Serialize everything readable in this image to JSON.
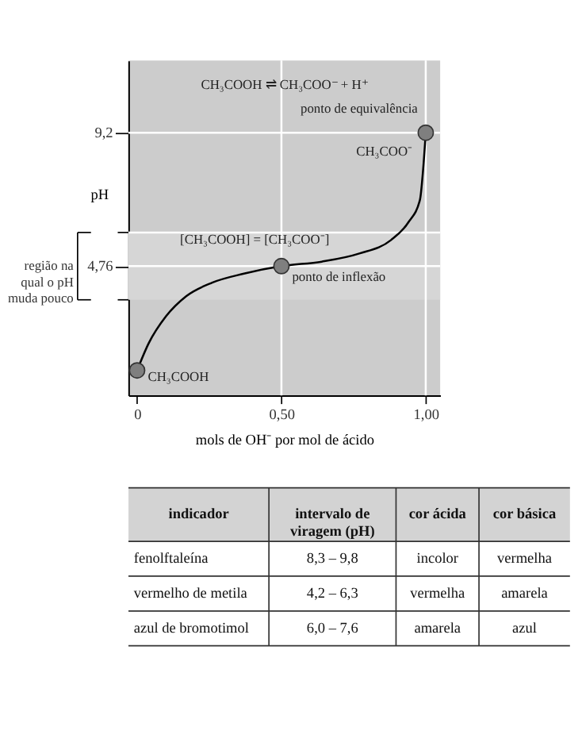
{
  "chart_data": [
    {
      "type": "line",
      "xlabel": "mols de OH⁻ por mol de ácido",
      "ylabel": "pH",
      "xlim": [
        -0.03,
        1.05
      ],
      "ylim": [
        0.46,
        11.6
      ],
      "xticks": [
        {
          "value": 0,
          "label": "0"
        },
        {
          "value": 0.5,
          "label": "0,50"
        },
        {
          "value": 1,
          "label": "1,00"
        }
      ],
      "yticks": [
        {
          "value": 4.76,
          "label": "4,76"
        },
        {
          "value": 9.2,
          "label": "9,2"
        }
      ],
      "grid": false,
      "series": [
        {
          "type": "line",
          "color": "#000000",
          "marker": "none",
          "x": [
            0,
            0.04,
            0.1,
            0.17,
            0.26,
            0.37,
            0.5,
            0.64,
            0.77,
            0.88,
            0.94,
            0.98,
            0.99,
            1.0
          ],
          "values": [
            1.29,
            2.19,
            3.09,
            3.76,
            4.21,
            4.51,
            4.76,
            4.91,
            5.18,
            5.63,
            6.22,
            6.97,
            7.87,
            9.2
          ]
        },
        {
          "type": "scatter",
          "color": "#7f7f7f",
          "marker": "circle",
          "x": [
            0,
            0.5,
            1.0
          ],
          "values": [
            1.29,
            4.76,
            9.2
          ]
        }
      ],
      "ref_lines": [
        {
          "axis": "y",
          "value": 9.2,
          "color": "#ffffff"
        },
        {
          "axis": "y",
          "value": 5.88,
          "color": "#ffffff"
        },
        {
          "axis": "y",
          "value": 4.76,
          "color": "#ffffff"
        },
        {
          "axis": "x",
          "value": 0.5,
          "color": "#ffffff"
        },
        {
          "axis": "x",
          "value": 1.0,
          "color": "#ffffff"
        }
      ],
      "bands": [
        {
          "axis": "y",
          "from": 3.64,
          "to": 5.88
        }
      ],
      "annotations": [
        "CH₃COOH ⇌ CH₃COO⁻ + H⁺",
        {
          "text": "ponto de equivalência",
          "x": 1.0,
          "y": 9.2
        },
        {
          "text": "CH₃COO⁻",
          "x": 1.0,
          "y": 9.2
        },
        {
          "text": "[CH₃COOH] = [CH₃COO⁻]",
          "x": 0.5,
          "y": 4.76
        },
        {
          "text": "ponto de inflexão",
          "x": 0.5,
          "y": 4.76
        },
        {
          "text": "CH₃COOH",
          "x": 0,
          "y": 1.29
        },
        "região na qual o pH muda pouco"
      ]
    },
    {
      "type": "other",
      "annotations": [
        "indicador",
        "intervalo de\nviragem (pH)",
        "cor ácida",
        "cor básica",
        "fenolftaleína",
        "8,3 – 9,8",
        "incolor",
        "vermelha",
        "vermelho de metila",
        "4,2 – 6,3",
        "vermelha",
        "amarela",
        "azul de bromotimol",
        "6,0 – 7,6",
        "amarela",
        "azul"
      ]
    }
  ]
}
